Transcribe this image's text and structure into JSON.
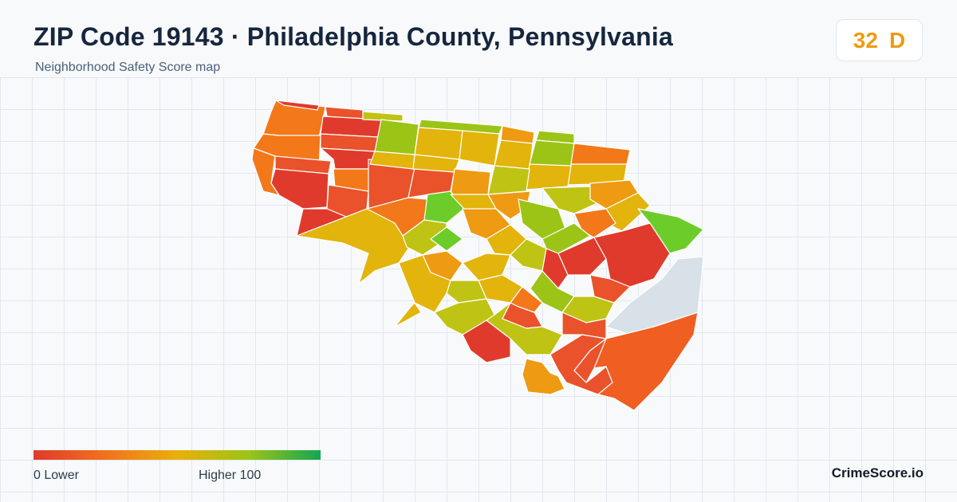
{
  "header": {
    "title": "ZIP Code 19143 · Philadelphia County, Pennsylvania",
    "subtitle": "Neighborhood Safety Score map"
  },
  "score_badge": {
    "score": "32",
    "grade": "D",
    "color": "#ef9a12"
  },
  "legend": {
    "min_label": "0  Lower",
    "max_label": "Higher  100",
    "colors": [
      "#e03a2c",
      "#f2711d",
      "#e9b00c",
      "#9bc417",
      "#14a652"
    ]
  },
  "brand": "CrimeScore.io",
  "map": {
    "region_colors": {
      "red": "#e03a2c",
      "red_orange": "#e9522a",
      "orange": "#f2781a",
      "amber": "#ee9a12",
      "yellow": "#e2b40c",
      "yellow_green": "#bfc313",
      "green_yellow": "#9bc417",
      "green": "#6ccd2a",
      "no_data": "#d8e0e8"
    }
  }
}
